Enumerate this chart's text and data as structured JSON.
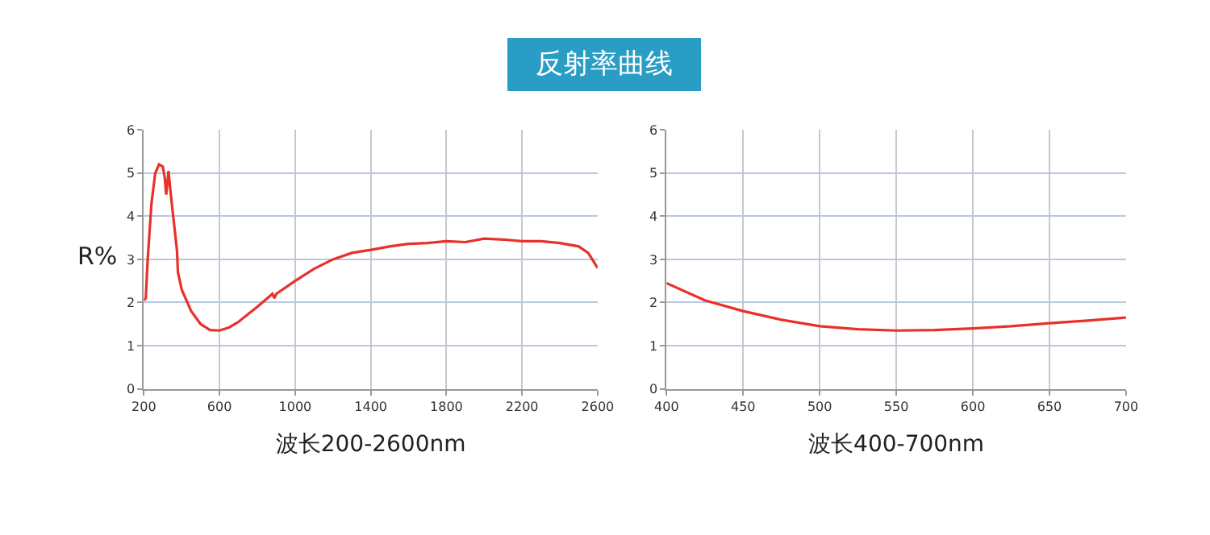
{
  "chart_data": [
    {
      "type": "line",
      "title": "反射率曲线",
      "ylabel": "R%",
      "xlabel": "波长200-2600nm",
      "xlim": [
        200,
        2600
      ],
      "xticks": [
        200,
        600,
        1000,
        1400,
        1800,
        2200,
        2600
      ],
      "ylim": [
        0,
        6
      ],
      "yticks": [
        0,
        1,
        2,
        3,
        4,
        5,
        6
      ],
      "grid": true,
      "series": [
        {
          "color": "#e8312a",
          "x": [
            200,
            210,
            220,
            240,
            260,
            280,
            300,
            310,
            318,
            330,
            340,
            355,
            370,
            375,
            380,
            400,
            450,
            500,
            550,
            600,
            650,
            700,
            800,
            880,
            890,
            900,
            1000,
            1100,
            1200,
            1300,
            1400,
            1500,
            1600,
            1700,
            1800,
            1900,
            2000,
            2100,
            2200,
            2300,
            2400,
            2500,
            2550,
            2600
          ],
          "values": [
            2.05,
            2.1,
            3.0,
            4.3,
            5.0,
            5.2,
            5.15,
            4.9,
            4.5,
            5.05,
            4.6,
            4.0,
            3.4,
            3.2,
            2.7,
            2.3,
            1.8,
            1.5,
            1.36,
            1.35,
            1.42,
            1.55,
            1.9,
            2.2,
            2.1,
            2.2,
            2.5,
            2.78,
            3.0,
            3.15,
            3.22,
            3.3,
            3.36,
            3.38,
            3.42,
            3.4,
            3.48,
            3.46,
            3.42,
            3.42,
            3.38,
            3.3,
            3.15,
            2.8
          ]
        }
      ]
    },
    {
      "type": "line",
      "xlabel": "波长400-700nm",
      "xlim": [
        400,
        700
      ],
      "xticks": [
        400,
        450,
        500,
        550,
        600,
        650,
        700
      ],
      "ylim": [
        0,
        6
      ],
      "yticks": [
        0,
        1,
        2,
        3,
        4,
        5,
        6
      ],
      "grid": true,
      "series": [
        {
          "color": "#e8312a",
          "x": [
            400,
            425,
            450,
            475,
            500,
            525,
            550,
            575,
            600,
            625,
            650,
            675,
            700
          ],
          "values": [
            2.45,
            2.05,
            1.8,
            1.6,
            1.45,
            1.38,
            1.35,
            1.36,
            1.4,
            1.45,
            1.52,
            1.58,
            1.65
          ]
        }
      ]
    }
  ]
}
